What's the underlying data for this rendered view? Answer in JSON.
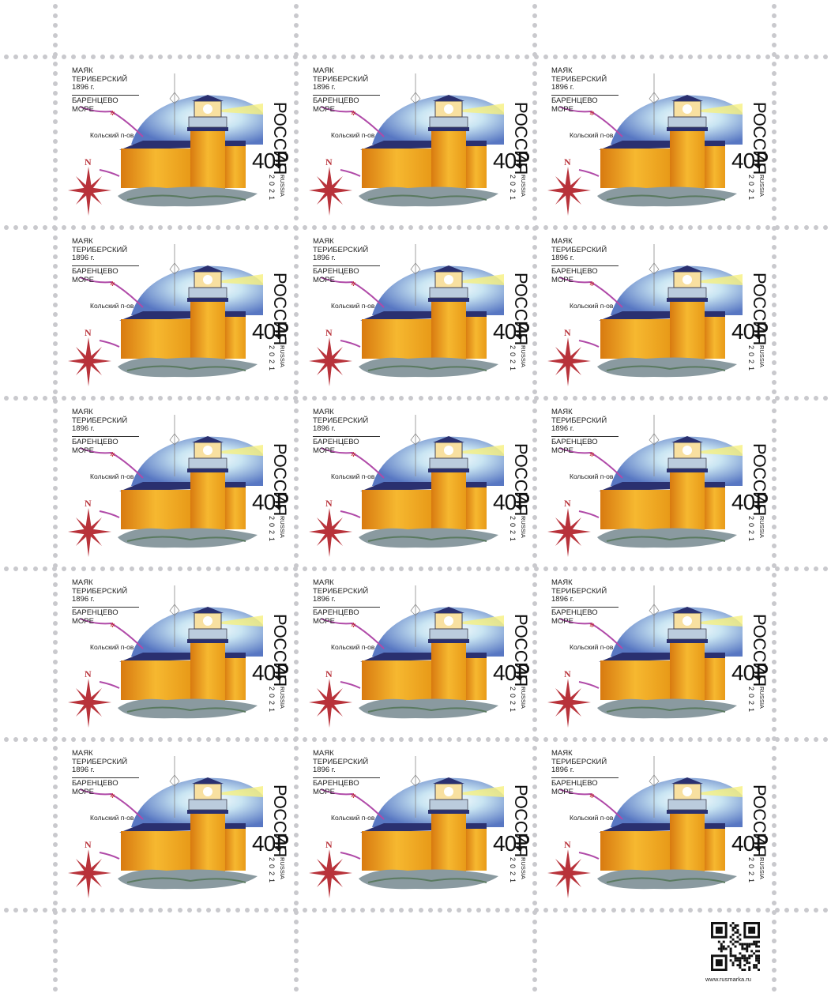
{
  "sheet": {
    "rows": 5,
    "columns": 3,
    "perforation_color": "#c9c9cd",
    "website": "www.rusmarka.ru",
    "qr_code": "qr-code-icon"
  },
  "stamp": {
    "title_line1": "МАЯК",
    "title_line2": "ТЕРИБЕРСКИЙ",
    "title_line3": "1896 г.",
    "sea": "БАРЕНЦЕВО МОРЕ",
    "peninsula": "Кольский п-ов",
    "country": "РОССИЯ",
    "value": "40₽",
    "country_latin": "RUSSIA",
    "year": "2021",
    "compass_letter": "N",
    "colors": {
      "lighthouse": "#f0a020",
      "sky": "#3a5fb8",
      "coast": "#b04aa8",
      "compass": "#b8323a"
    }
  }
}
